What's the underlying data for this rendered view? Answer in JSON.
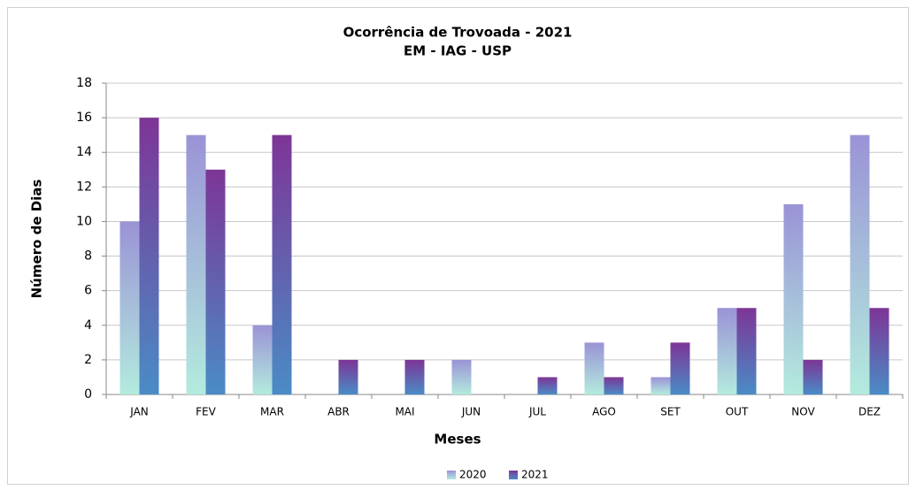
{
  "chart_data": {
    "type": "bar",
    "title": "Ocorrência de Trovoada - 2021",
    "subtitle": "EM - IAG - USP",
    "x_label": "Meses",
    "y_label": "Número de Dias",
    "categories": [
      "JAN",
      "FEV",
      "MAR",
      "ABR",
      "MAI",
      "JUN",
      "JUL",
      "AGO",
      "SET",
      "OUT",
      "NOV",
      "DEZ"
    ],
    "series": [
      {
        "name": "2020",
        "color": "#9a93d6",
        "values": [
          10,
          15,
          4,
          0,
          0,
          2,
          0,
          3,
          1,
          5,
          11,
          15
        ]
      },
      {
        "name": "2021",
        "color": "#7d3596",
        "values": [
          16,
          13,
          15,
          2,
          2,
          0,
          1,
          1,
          3,
          5,
          2,
          5
        ]
      }
    ],
    "ylim": [
      0,
      18
    ],
    "yticks": [
      0,
      2,
      4,
      6,
      8,
      10,
      12,
      14,
      16,
      18
    ],
    "grid": true,
    "legend": "bottom"
  }
}
